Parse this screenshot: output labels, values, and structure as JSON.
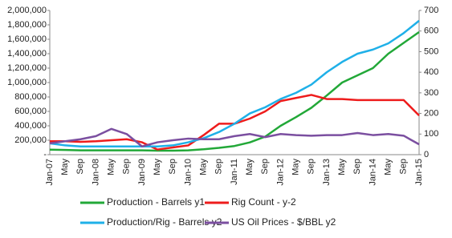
{
  "chart_data": {
    "type": "line",
    "categories": [
      "Jan-07",
      "May",
      "Sep",
      "Jan-08",
      "May",
      "Sep",
      "Jan-09",
      "May",
      "Sep",
      "Jan-10",
      "May",
      "Sep",
      "Jan-11",
      "May",
      "Sep",
      "Jan-12",
      "May",
      "Sep",
      "Jan-13",
      "May",
      "Sep",
      "Jan-14",
      "May",
      "Sep",
      "Jan-15"
    ],
    "series": [
      {
        "name": "Production - Barrels y1",
        "color": "#22a838",
        "values": [
          70000,
          65000,
          60000,
          60000,
          60000,
          60000,
          60000,
          55000,
          55000,
          60000,
          75000,
          95000,
          120000,
          170000,
          250000,
          400000,
          520000,
          650000,
          820000,
          1000000,
          1100000,
          1200000,
          1400000,
          1550000,
          1700000
        ]
      },
      {
        "name": "Rig Count - y-2",
        "color": "#ee1c1c",
        "axis": "y2",
        "values": [
          65,
          65,
          62,
          65,
          70,
          75,
          60,
          25,
          35,
          45,
          95,
          150,
          150,
          175,
          210,
          260,
          275,
          290,
          270,
          270,
          265,
          265,
          265,
          265,
          190
        ]
      },
      {
        "name": "Production/Rig - Barrels y2",
        "color": "#1fb0e8",
        "axis": "y2",
        "values": [
          55,
          45,
          40,
          40,
          40,
          40,
          40,
          40,
          45,
          60,
          80,
          110,
          150,
          200,
          230,
          270,
          300,
          340,
          400,
          450,
          490,
          510,
          540,
          590,
          650
        ]
      },
      {
        "name": "US Oil Prices - $/BBL y2",
        "color": "#7b4fa0",
        "axis": "y2",
        "values": [
          55,
          65,
          75,
          90,
          125,
          100,
          40,
          60,
          70,
          78,
          75,
          75,
          90,
          100,
          85,
          100,
          95,
          92,
          95,
          95,
          105,
          95,
          100,
          92,
          50
        ]
      }
    ],
    "ylim": [
      0,
      2000000
    ],
    "yticks": [
      {
        "value": 0,
        "label": "-"
      },
      {
        "value": 200000,
        "label": "200,000"
      },
      {
        "value": 400000,
        "label": "400,000"
      },
      {
        "value": 600000,
        "label": "600,000"
      },
      {
        "value": 800000,
        "label": "800,000"
      },
      {
        "value": 1000000,
        "label": "1,000,000"
      },
      {
        "value": 1200000,
        "label": "1,200,000"
      },
      {
        "value": 1400000,
        "label": "1,400,000"
      },
      {
        "value": 1600000,
        "label": "1,600,000"
      },
      {
        "value": 1800000,
        "label": "1,800,000"
      },
      {
        "value": 2000000,
        "label": "2,000,000"
      }
    ],
    "y2lim": [
      0,
      700
    ],
    "y2ticks": [
      0,
      100,
      200,
      300,
      400,
      500,
      600,
      700
    ],
    "legend": "bottom"
  }
}
